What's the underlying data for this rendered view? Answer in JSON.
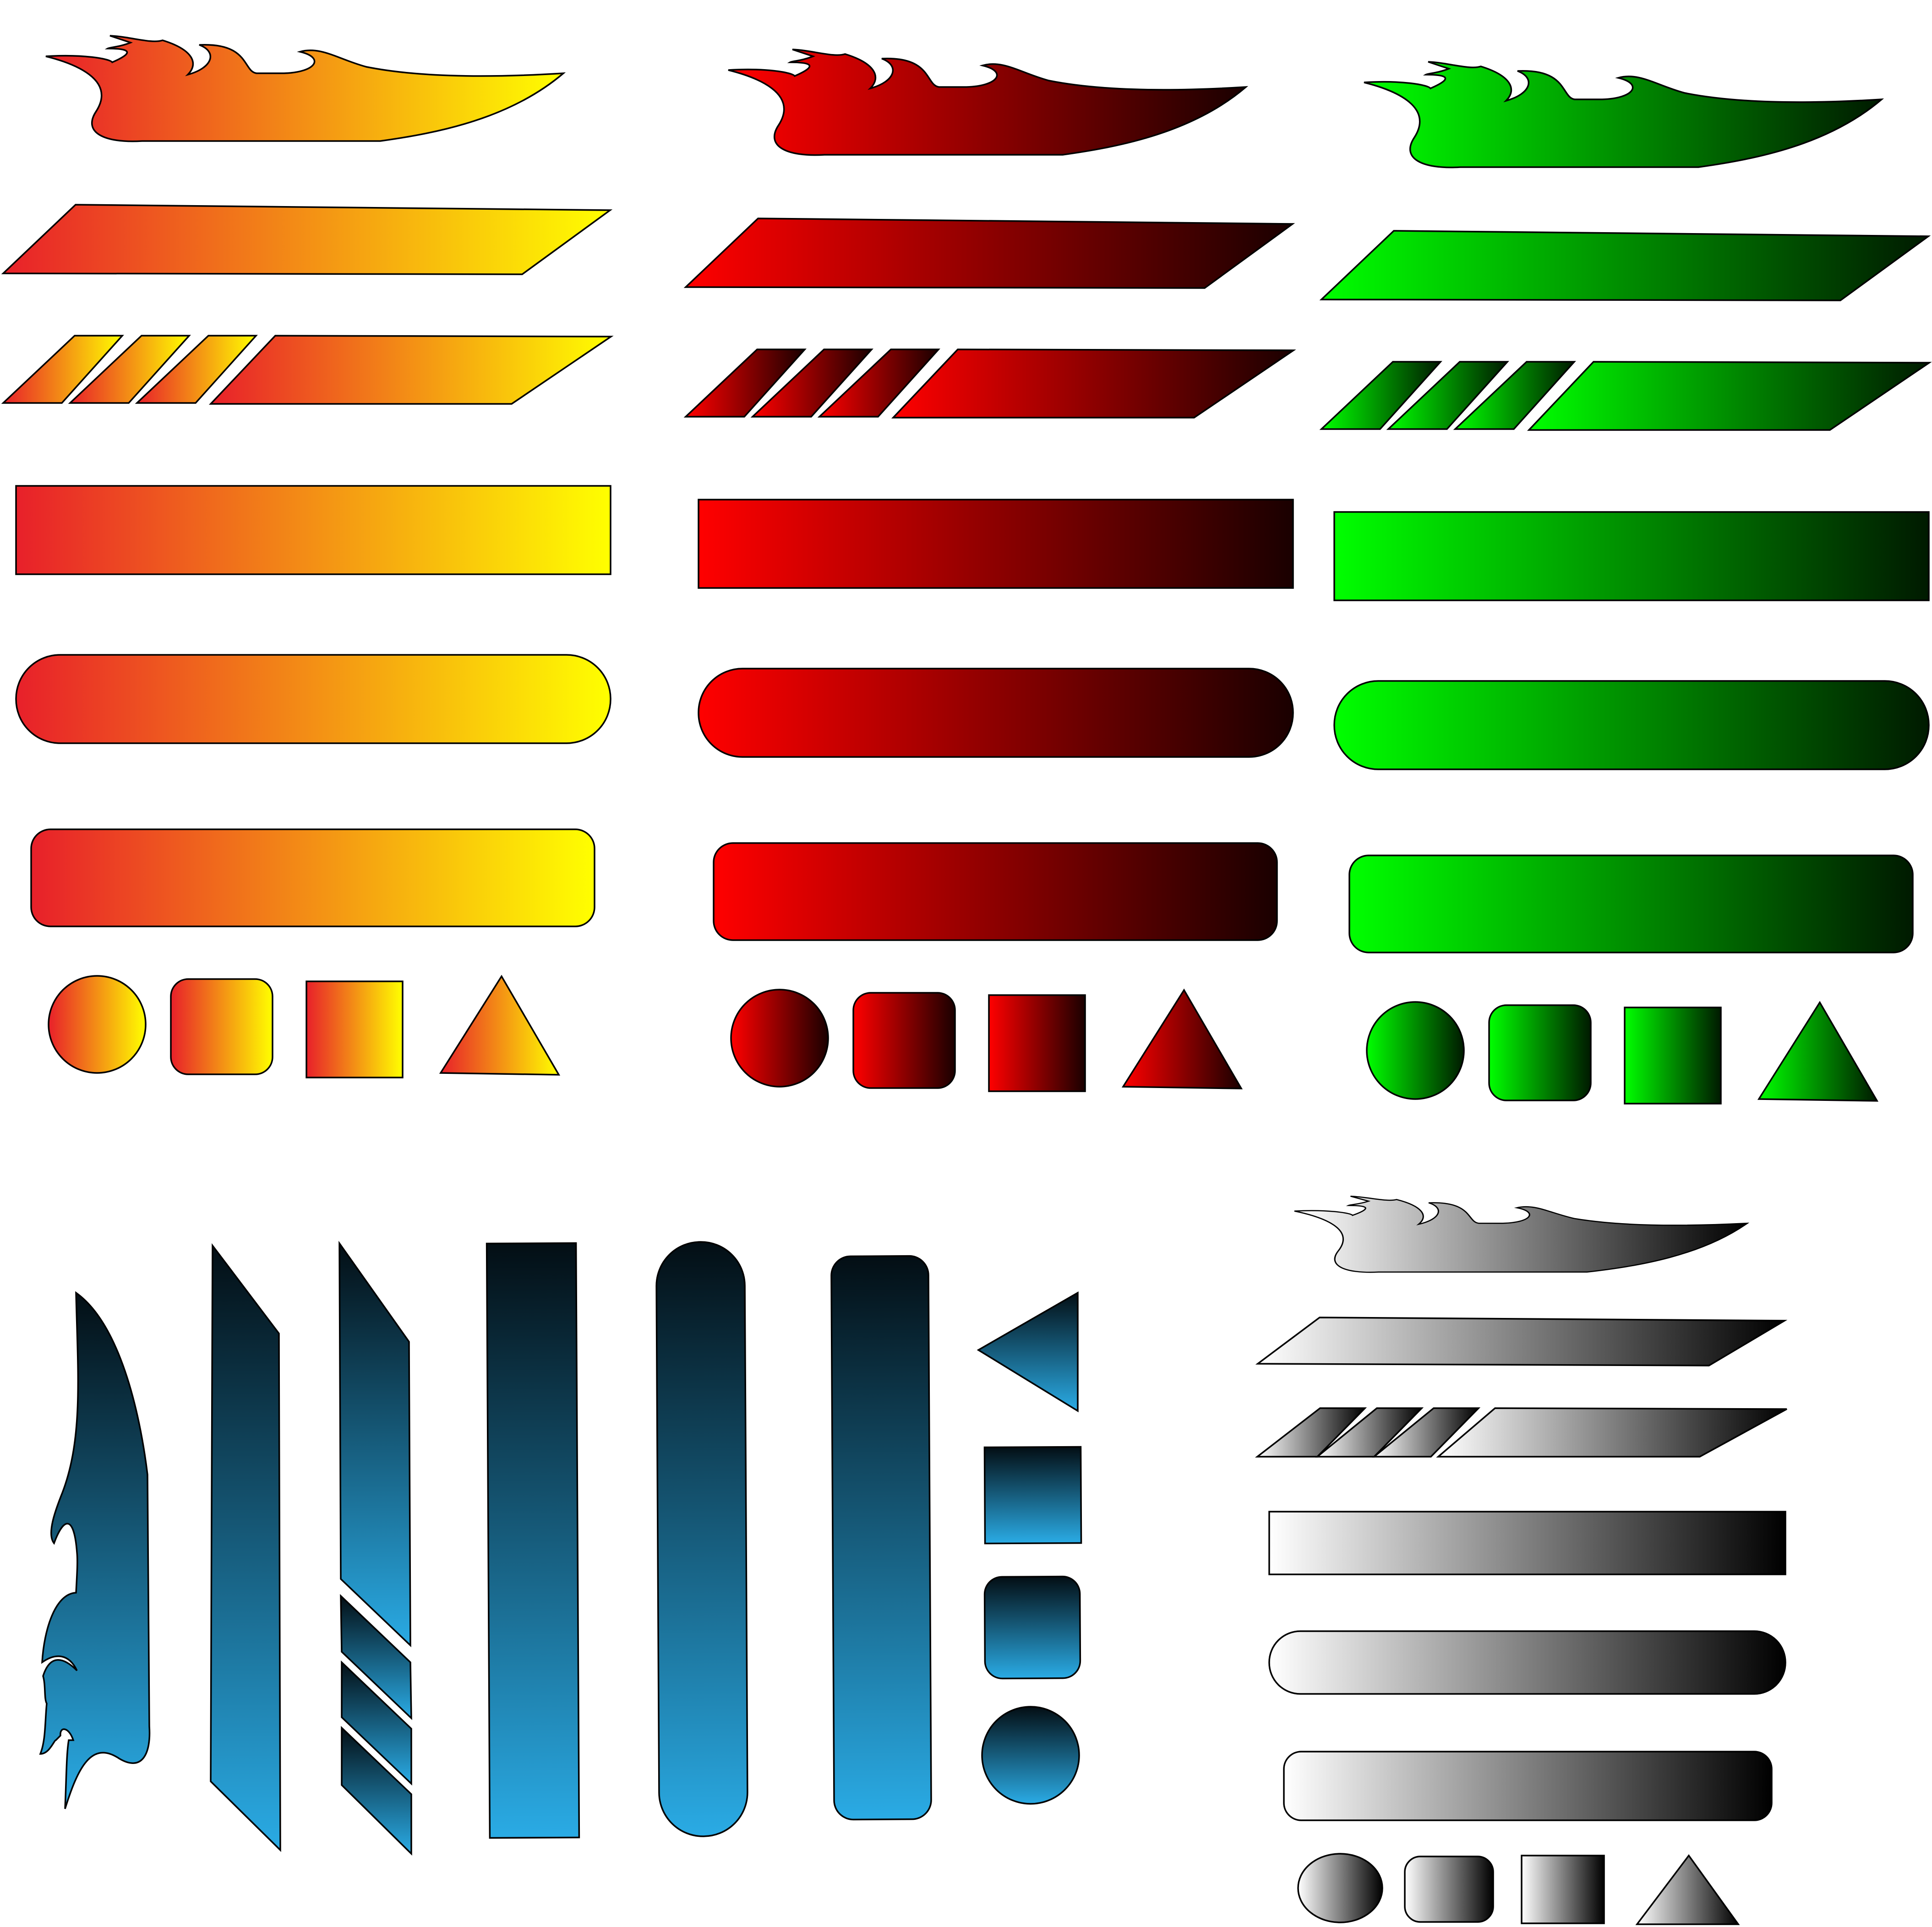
{
  "palettes": {
    "orange": {
      "start": "#e8202a",
      "end": "#ffff00"
    },
    "red": {
      "start": "#ff0000",
      "end": "#1a0000"
    },
    "green": {
      "start": "#00ff00",
      "end": "#001a00"
    },
    "blue": {
      "start": "#2aabe5",
      "end": "#030e14"
    },
    "gray": {
      "start": "#ffffff",
      "end": "#000000"
    }
  },
  "outline_color": "#000000",
  "groups": [
    {
      "id": "orange",
      "orientation": "horizontal",
      "shapes": [
        "flame-banner",
        "slanted-bar",
        "striped-slanted-bar",
        "rectangle-bar",
        "pill-bar",
        "rounded-bar",
        "circle",
        "rounded-square",
        "square",
        "triangle"
      ]
    },
    {
      "id": "red",
      "orientation": "horizontal",
      "shapes": [
        "flame-banner",
        "slanted-bar",
        "striped-slanted-bar",
        "rectangle-bar",
        "pill-bar",
        "rounded-bar",
        "circle",
        "rounded-square",
        "square",
        "triangle"
      ]
    },
    {
      "id": "green",
      "orientation": "horizontal",
      "shapes": [
        "flame-banner",
        "slanted-bar",
        "striped-slanted-bar",
        "rectangle-bar",
        "pill-bar",
        "rounded-bar",
        "circle",
        "rounded-square",
        "square",
        "triangle"
      ]
    },
    {
      "id": "blue",
      "orientation": "vertical",
      "shapes": [
        "flame-banner",
        "slanted-bar",
        "striped-slanted-bar",
        "rectangle-bar",
        "pill-bar",
        "rounded-bar",
        "triangle",
        "square",
        "rounded-square",
        "circle"
      ]
    },
    {
      "id": "gray",
      "orientation": "horizontal",
      "shapes": [
        "flame-banner",
        "slanted-bar",
        "striped-slanted-bar",
        "rectangle-bar",
        "pill-bar",
        "rounded-bar",
        "ellipse",
        "rounded-square",
        "square",
        "triangle"
      ]
    }
  ]
}
